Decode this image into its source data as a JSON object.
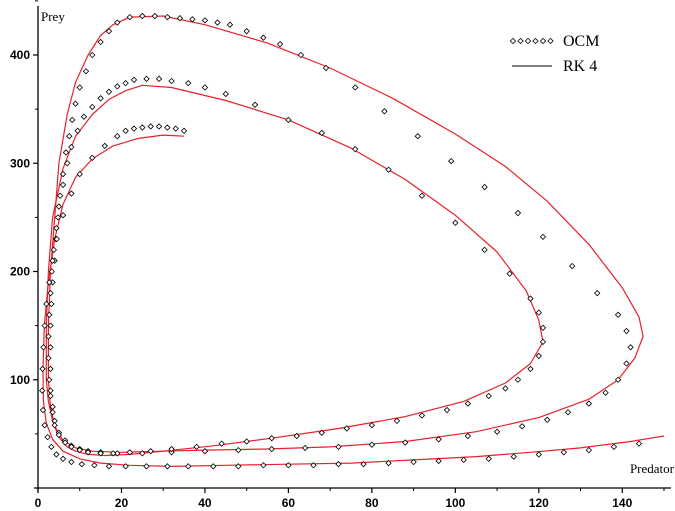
{
  "chart_data": {
    "type": "line",
    "xlabel": "Predator",
    "ylabel": "Prey",
    "xlim": [
      0,
      150
    ],
    "ylim": [
      0,
      450
    ],
    "x_ticks": [
      "0",
      "20",
      "40",
      "60",
      "80",
      "100",
      "120",
      "140"
    ],
    "y_ticks": [
      "100",
      "200",
      "300",
      "400"
    ],
    "grid": false,
    "legend_position": "top-right",
    "colors": {
      "rk4": "#e8202a",
      "ocm_marker": "#000000",
      "axis": "#000000"
    },
    "legend": [
      {
        "name": "OCM",
        "style": "diamond-markers"
      },
      {
        "name": "RK 4",
        "style": "line"
      }
    ],
    "series": [
      {
        "name": "RK 4",
        "curve": "outer",
        "points": [
          [
            22,
            435
          ],
          [
            30,
            436
          ],
          [
            40,
            428
          ],
          [
            55,
            411
          ],
          [
            70,
            388
          ],
          [
            85,
            360
          ],
          [
            100,
            327
          ],
          [
            112,
            297
          ],
          [
            122,
            265
          ],
          [
            132,
            225
          ],
          [
            140,
            185
          ],
          [
            144,
            158
          ],
          [
            145,
            140
          ],
          [
            143,
            120
          ],
          [
            139,
            100
          ],
          [
            132,
            82
          ],
          [
            120,
            65
          ],
          [
            105,
            52
          ],
          [
            88,
            43
          ],
          [
            70,
            38
          ],
          [
            55,
            36
          ],
          [
            40,
            35
          ],
          [
            30,
            34
          ],
          [
            20,
            33
          ],
          [
            13,
            34
          ],
          [
            9,
            37
          ],
          [
            6,
            44
          ],
          [
            4,
            57
          ],
          [
            3,
            75
          ],
          [
            2.5,
            100
          ],
          [
            2.5,
            150
          ],
          [
            3,
            200
          ],
          [
            4,
            250
          ],
          [
            5,
            300
          ],
          [
            7,
            345
          ],
          [
            9,
            375
          ],
          [
            12,
            400
          ],
          [
            15,
            418
          ],
          [
            18,
            428
          ],
          [
            22,
            435
          ]
        ]
      },
      {
        "name": "RK 4",
        "curve": "middle",
        "points": [
          [
            25,
            372
          ],
          [
            32,
            370
          ],
          [
            45,
            358
          ],
          [
            60,
            340
          ],
          [
            75,
            314
          ],
          [
            88,
            285
          ],
          [
            100,
            252
          ],
          [
            110,
            218
          ],
          [
            117,
            182
          ],
          [
            120,
            155
          ],
          [
            121,
            135
          ],
          [
            118,
            115
          ],
          [
            112,
            97
          ],
          [
            102,
            80
          ],
          [
            88,
            66
          ],
          [
            72,
            55
          ],
          [
            56,
            46
          ],
          [
            42,
            39
          ],
          [
            30,
            34
          ],
          [
            22,
            31
          ],
          [
            16,
            30
          ],
          [
            12,
            31
          ],
          [
            9,
            34
          ],
          [
            7,
            38
          ],
          [
            5,
            47
          ],
          [
            3.5,
            62
          ],
          [
            2.5,
            80
          ],
          [
            2,
            100
          ],
          [
            2,
            150
          ],
          [
            2.5,
            200
          ],
          [
            3.5,
            250
          ],
          [
            6,
            295
          ],
          [
            9,
            325
          ],
          [
            13,
            345
          ],
          [
            17,
            359
          ],
          [
            21,
            367
          ],
          [
            25,
            372
          ]
        ]
      },
      {
        "name": "RK 4",
        "curve": "inner",
        "points": [
          [
            35,
            325
          ],
          [
            30,
            326
          ],
          [
            24,
            323
          ],
          [
            18,
            316
          ],
          [
            13,
            304
          ],
          [
            9,
            287
          ],
          [
            6,
            262
          ],
          [
            4,
            230
          ],
          [
            2.5,
            190
          ],
          [
            1.5,
            150
          ],
          [
            1.2,
            110
          ],
          [
            1.3,
            80
          ],
          [
            2,
            60
          ],
          [
            3.5,
            45
          ],
          [
            6,
            34
          ],
          [
            10,
            27
          ],
          [
            15,
            23
          ],
          [
            22,
            21
          ],
          [
            32,
            20
          ],
          [
            45,
            21
          ],
          [
            60,
            22
          ],
          [
            75,
            23
          ],
          [
            90,
            26
          ],
          [
            105,
            29
          ],
          [
            118,
            33
          ],
          [
            130,
            37
          ],
          [
            142,
            43
          ],
          [
            150,
            48
          ]
        ]
      },
      {
        "name": "OCM",
        "curve": "outer",
        "points": [
          [
            22,
            435
          ],
          [
            25,
            436
          ],
          [
            28,
            436
          ],
          [
            31,
            435
          ],
          [
            34,
            434
          ],
          [
            37,
            433
          ],
          [
            40,
            432
          ],
          [
            43,
            430
          ],
          [
            46,
            428
          ],
          [
            50,
            422
          ],
          [
            54,
            416
          ],
          [
            58,
            410
          ],
          [
            63,
            400
          ],
          [
            69,
            388
          ],
          [
            76,
            370
          ],
          [
            83,
            348
          ],
          [
            91,
            325
          ],
          [
            99,
            302
          ],
          [
            107,
            278
          ],
          [
            115,
            254
          ],
          [
            121,
            232
          ],
          [
            128,
            205
          ],
          [
            134,
            180
          ],
          [
            139,
            160
          ],
          [
            141,
            145
          ],
          [
            142,
            130
          ],
          [
            141,
            115
          ],
          [
            139,
            100
          ],
          [
            136,
            88
          ],
          [
            132,
            78
          ],
          [
            127,
            70
          ],
          [
            122,
            63
          ],
          [
            116,
            57
          ],
          [
            110,
            52
          ],
          [
            103,
            48
          ],
          [
            96,
            45
          ],
          [
            88,
            42
          ],
          [
            80,
            40
          ],
          [
            72,
            38
          ],
          [
            64,
            37
          ],
          [
            56,
            36
          ],
          [
            48,
            35
          ],
          [
            40,
            34
          ],
          [
            32,
            33
          ],
          [
            25,
            32
          ],
          [
            19,
            32
          ],
          [
            15,
            33
          ],
          [
            12,
            34
          ],
          [
            10,
            36
          ],
          [
            8,
            39
          ],
          [
            6.5,
            44
          ],
          [
            5,
            51
          ],
          [
            4,
            62
          ],
          [
            3.5,
            75
          ],
          [
            3,
            90
          ],
          [
            3,
            110
          ],
          [
            3,
            130
          ],
          [
            3,
            150
          ],
          [
            3.2,
            170
          ],
          [
            3.5,
            190
          ],
          [
            4,
            210
          ],
          [
            4.3,
            230
          ],
          [
            4.8,
            250
          ],
          [
            5.3,
            270
          ],
          [
            6,
            290
          ],
          [
            6.7,
            310
          ],
          [
            7.5,
            325
          ],
          [
            8.2,
            340
          ],
          [
            9,
            355
          ],
          [
            10,
            370
          ],
          [
            11.5,
            385
          ],
          [
            13,
            400
          ],
          [
            15,
            412
          ],
          [
            17,
            422
          ],
          [
            19,
            430
          ]
        ]
      },
      {
        "name": "OCM",
        "curve": "middle",
        "points": [
          [
            23,
            377
          ],
          [
            26,
            378
          ],
          [
            29,
            378
          ],
          [
            32,
            376
          ],
          [
            36,
            374
          ],
          [
            40,
            370
          ],
          [
            45,
            364
          ],
          [
            52,
            354
          ],
          [
            60,
            340
          ],
          [
            68,
            328
          ],
          [
            76,
            313
          ],
          [
            84,
            294
          ],
          [
            92,
            270
          ],
          [
            100,
            245
          ],
          [
            107,
            220
          ],
          [
            113,
            198
          ],
          [
            118,
            175
          ],
          [
            120,
            162
          ],
          [
            121,
            148
          ],
          [
            121,
            135
          ],
          [
            120,
            122
          ],
          [
            118,
            110
          ],
          [
            115,
            100
          ],
          [
            112,
            92
          ],
          [
            108,
            85
          ],
          [
            103,
            78
          ],
          [
            98,
            72
          ],
          [
            92,
            67
          ],
          [
            86,
            62
          ],
          [
            80,
            58
          ],
          [
            74,
            55
          ],
          [
            68,
            51
          ],
          [
            62,
            48
          ],
          [
            56,
            46
          ],
          [
            50,
            43
          ],
          [
            44,
            41
          ],
          [
            38,
            38
          ],
          [
            32,
            36
          ],
          [
            27,
            34
          ],
          [
            22,
            33
          ],
          [
            18,
            32
          ],
          [
            15,
            32
          ],
          [
            12,
            33
          ],
          [
            10,
            35
          ],
          [
            8,
            38
          ],
          [
            6.5,
            42
          ],
          [
            5,
            49
          ],
          [
            4,
            58
          ],
          [
            3.5,
            70
          ],
          [
            3,
            85
          ],
          [
            2.7,
            100
          ],
          [
            2.5,
            120
          ],
          [
            2.5,
            140
          ],
          [
            2.7,
            160
          ],
          [
            3,
            180
          ],
          [
            3.3,
            200
          ],
          [
            3.8,
            220
          ],
          [
            4.4,
            240
          ],
          [
            5,
            260
          ],
          [
            6,
            280
          ],
          [
            7,
            300
          ],
          [
            8,
            315
          ],
          [
            9.5,
            330
          ],
          [
            11,
            343
          ],
          [
            13,
            352
          ],
          [
            15,
            360
          ],
          [
            17,
            366
          ],
          [
            19,
            371
          ],
          [
            21,
            374
          ]
        ]
      },
      {
        "name": "OCM",
        "curve": "inner",
        "points": [
          [
            35,
            330
          ],
          [
            33,
            332
          ],
          [
            31,
            333
          ],
          [
            29,
            334
          ],
          [
            27,
            334
          ],
          [
            25,
            333
          ],
          [
            23,
            332
          ],
          [
            21,
            330
          ],
          [
            19,
            325
          ],
          [
            16,
            316
          ],
          [
            13,
            305
          ],
          [
            10,
            290
          ],
          [
            8,
            272
          ],
          [
            6,
            252
          ],
          [
            4.5,
            230
          ],
          [
            3.5,
            210
          ],
          [
            2.7,
            190
          ],
          [
            2,
            170
          ],
          [
            1.6,
            150
          ],
          [
            1.3,
            130
          ],
          [
            1.1,
            110
          ],
          [
            1,
            90
          ],
          [
            1.2,
            72
          ],
          [
            1.6,
            58
          ],
          [
            2.3,
            47
          ],
          [
            3.2,
            38
          ],
          [
            4.4,
            31
          ],
          [
            6,
            27
          ],
          [
            8,
            24
          ],
          [
            10.5,
            22
          ],
          [
            13.5,
            21
          ],
          [
            17,
            20
          ],
          [
            21,
            20
          ],
          [
            26,
            20
          ],
          [
            31,
            20
          ],
          [
            36,
            20
          ],
          [
            42,
            20
          ],
          [
            48,
            20
          ],
          [
            54,
            21
          ],
          [
            60,
            21
          ],
          [
            66,
            21
          ],
          [
            72,
            22
          ],
          [
            78,
            22
          ],
          [
            84,
            23
          ],
          [
            90,
            24
          ],
          [
            96,
            25
          ],
          [
            102,
            26
          ],
          [
            108,
            27
          ],
          [
            114,
            29
          ],
          [
            120,
            31
          ],
          [
            126,
            33
          ],
          [
            132,
            35
          ],
          [
            138,
            38
          ],
          [
            144,
            41
          ]
        ]
      }
    ]
  }
}
